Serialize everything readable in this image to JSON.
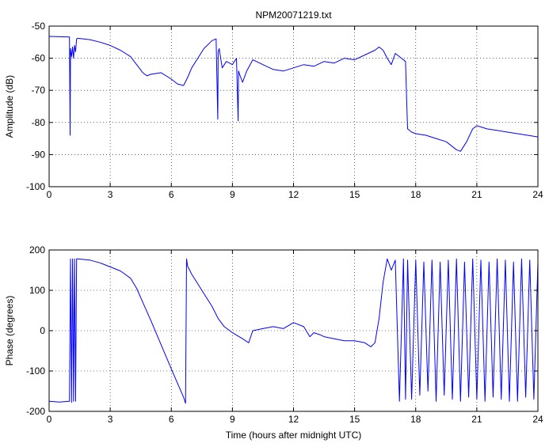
{
  "colors": {
    "line": "#0000ff",
    "axis": "#000000",
    "grid": "#000000",
    "background": "#ffffff"
  },
  "chart_data": [
    {
      "type": "line",
      "title": "NPM20071219.txt",
      "xlabel": "",
      "ylabel": "Amplitude (dB)",
      "xlim": [
        0,
        24
      ],
      "ylim": [
        -100,
        -50
      ],
      "xticks": [
        0,
        3,
        6,
        9,
        12,
        15,
        18,
        21,
        24
      ],
      "yticks": [
        -100,
        -90,
        -80,
        -70,
        -60,
        -50
      ],
      "grid": true,
      "series": [
        {
          "x": [
            0,
            0.5,
            1.0,
            1.03,
            1.05,
            1.1,
            1.15,
            1.2,
            1.25,
            1.3,
            1.35,
            1.4,
            2.0,
            2.5,
            3.0,
            3.5,
            4.0,
            4.3,
            4.6,
            4.8,
            5.0,
            5.5,
            6.0,
            6.3,
            6.6,
            6.8,
            7.0,
            7.3,
            7.6,
            8.0,
            8.2,
            8.28,
            8.3,
            8.35,
            8.5,
            8.7,
            9.0,
            9.2,
            9.28,
            9.3,
            9.35,
            9.5,
            9.7,
            10.0,
            10.5,
            11.0,
            11.5,
            12.0,
            12.5,
            13.0,
            13.5,
            14.0,
            14.5,
            15.0,
            15.5,
            16.0,
            16.2,
            16.4,
            16.6,
            16.8,
            17.0,
            17.3,
            17.5,
            17.55,
            17.6,
            17.8,
            18.0,
            18.5,
            19.0,
            19.5,
            20.0,
            20.2,
            20.5,
            20.8,
            21.0,
            21.5,
            22.0,
            22.5,
            23.0,
            23.5,
            24.0
          ],
          "y": [
            -53.2,
            -53.3,
            -53.4,
            -84.0,
            -57.0,
            -59.5,
            -56.5,
            -60.0,
            -56.0,
            -58.0,
            -54.0,
            -53.8,
            -54.2,
            -55.0,
            -56.0,
            -57.5,
            -59.5,
            -62.0,
            -64.5,
            -65.5,
            -65.0,
            -64.5,
            -66.5,
            -68.0,
            -68.5,
            -66.0,
            -63.0,
            -60.0,
            -57.0,
            -54.5,
            -54.0,
            -79.0,
            -58.0,
            -57.0,
            -63.0,
            -61.0,
            -62.0,
            -60.0,
            -79.5,
            -64.0,
            -65.0,
            -67.5,
            -64.0,
            -60.5,
            -62.0,
            -63.5,
            -64.0,
            -63.0,
            -62.0,
            -62.5,
            -61.0,
            -61.5,
            -60.0,
            -60.5,
            -59.0,
            -57.5,
            -56.5,
            -57.5,
            -60.0,
            -62.0,
            -58.5,
            -60.0,
            -61.0,
            -72.0,
            -82.0,
            -83.0,
            -83.5,
            -84.0,
            -85.0,
            -86.0,
            -88.5,
            -89.0,
            -86.0,
            -82.0,
            -81.0,
            -82.0,
            -82.5,
            -83.0,
            -83.5,
            -84.0,
            -84.5
          ]
        }
      ]
    },
    {
      "type": "line",
      "title": "",
      "xlabel": "Time (hours after midnight UTC)",
      "ylabel": "Phase (degrees)",
      "xlim": [
        0,
        24
      ],
      "ylim": [
        -200,
        200
      ],
      "xticks": [
        0,
        3,
        6,
        9,
        12,
        15,
        18,
        21,
        24
      ],
      "yticks": [
        -200,
        -100,
        0,
        100,
        200
      ],
      "grid": true,
      "series": [
        {
          "x": [
            0,
            0.5,
            1.0,
            1.05,
            1.1,
            1.15,
            1.2,
            1.25,
            1.3,
            1.35,
            1.4,
            2.0,
            2.5,
            3.0,
            3.5,
            4.0,
            4.3,
            4.6,
            5.0,
            5.5,
            6.0,
            6.3,
            6.6,
            6.7,
            6.75,
            6.8,
            7.0,
            7.5,
            8.0,
            8.3,
            8.6,
            9.0,
            9.5,
            9.8,
            10.0,
            10.5,
            11.0,
            11.5,
            12.0,
            12.5,
            12.8,
            13.0,
            13.3,
            13.5,
            14.0,
            14.5,
            15.0,
            15.5,
            15.8,
            16.0,
            16.2,
            16.4,
            16.6,
            16.8,
            17.0,
            17.2,
            17.4,
            17.5,
            17.6,
            17.8,
            18.0,
            18.2,
            18.4,
            18.6,
            18.8,
            19.0,
            19.2,
            19.4,
            19.6,
            19.8,
            20.0,
            20.2,
            20.4,
            20.6,
            20.8,
            21.0,
            21.2,
            21.4,
            21.6,
            21.8,
            22.0,
            22.2,
            22.4,
            22.6,
            22.8,
            23.0,
            23.2,
            23.4,
            23.6,
            23.8,
            24.0
          ],
          "y": [
            -175,
            -177,
            -175,
            178,
            -178,
            178,
            -175,
            178,
            -175,
            178,
            178,
            175,
            168,
            158,
            148,
            130,
            105,
            70,
            25,
            -35,
            -95,
            -130,
            -165,
            -180,
            178,
            160,
            140,
            100,
            60,
            30,
            10,
            -5,
            -20,
            -30,
            0,
            5,
            10,
            5,
            20,
            10,
            -15,
            -5,
            -10,
            -15,
            -20,
            -25,
            -25,
            -30,
            -40,
            -30,
            30,
            120,
            178,
            150,
            175,
            -175,
            178,
            -170,
            175,
            -170,
            175,
            -160,
            170,
            -150,
            175,
            -175,
            170,
            -160,
            175,
            -170,
            178,
            -175,
            170,
            -165,
            178,
            -170,
            175,
            -175,
            170,
            -165,
            178,
            -170,
            175,
            -175,
            170,
            -175,
            178,
            -165,
            175,
            -170,
            170
          ]
        }
      ]
    }
  ]
}
